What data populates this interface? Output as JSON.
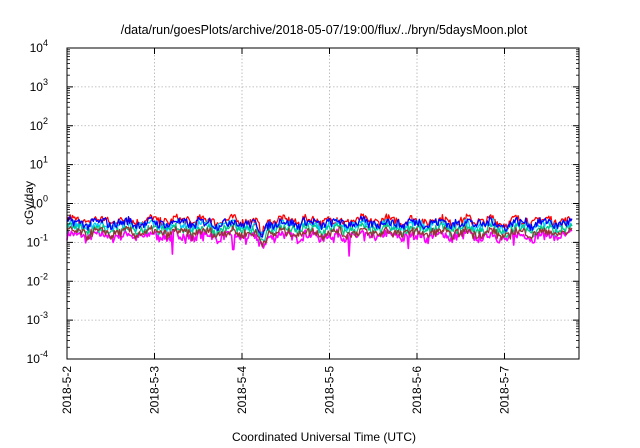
{
  "chart_data": {
    "type": "line",
    "title": "/data/run/goesPlots/archive/2018-05-07/19:00/flux/../bryn/5daysMoon.plot",
    "xlabel": "Coordinated Universal Time (UTC)",
    "ylabel": "cGy/day",
    "yscale": "log",
    "ylim": [
      0.0001,
      10000
    ],
    "xlim": [
      0,
      5.77
    ],
    "grid": true,
    "x_ticks": [
      "2018-5-2",
      "2018-5-3",
      "2018-5-4",
      "2018-5-5",
      "2018-5-6",
      "2018-5-7"
    ],
    "y_ticks": [
      {
        "base": "10",
        "exp": "4",
        "value": 10000
      },
      {
        "base": "10",
        "exp": "3",
        "value": 1000
      },
      {
        "base": "10",
        "exp": "2",
        "value": 100
      },
      {
        "base": "10",
        "exp": "1",
        "value": 10
      },
      {
        "base": "10",
        "exp": "0",
        "value": 1
      },
      {
        "base": "10",
        "exp": "-1",
        "value": 0.1
      },
      {
        "base": "10",
        "exp": "-2",
        "value": 0.01
      },
      {
        "base": "10",
        "exp": "-3",
        "value": 0.001
      },
      {
        "base": "10",
        "exp": "-4",
        "value": 0.0001
      }
    ],
    "series": [
      {
        "color": "#ff00ff",
        "level": 0.15
      },
      {
        "color": "#ff0000",
        "level": 0.37
      },
      {
        "color": "#00c8ff",
        "level": 0.28
      },
      {
        "color": "#00cc88",
        "level": 0.22
      },
      {
        "color": "#0000ff",
        "level": 0.32
      },
      {
        "color": "#993333",
        "level": 0.18
      }
    ],
    "dips": [
      {
        "x": 1.05,
        "y": 0.105
      },
      {
        "x": 1.2,
        "y": 0.05
      },
      {
        "x": 1.35,
        "y": 0.095
      },
      {
        "x": 1.55,
        "y": 0.11
      },
      {
        "x": 1.75,
        "y": 0.105
      },
      {
        "x": 1.9,
        "y": 0.065
      },
      {
        "x": 2.05,
        "y": 0.09
      },
      {
        "x": 2.2,
        "y": 0.08
      },
      {
        "x": 2.7,
        "y": 0.11
      },
      {
        "x": 3.05,
        "y": 0.1
      },
      {
        "x": 3.22,
        "y": 0.045
      },
      {
        "x": 3.4,
        "y": 0.11
      },
      {
        "x": 3.9,
        "y": 0.07
      },
      {
        "x": 4.4,
        "y": 0.1
      },
      {
        "x": 4.7,
        "y": 0.1
      },
      {
        "x": 5.1,
        "y": 0.085
      }
    ]
  }
}
